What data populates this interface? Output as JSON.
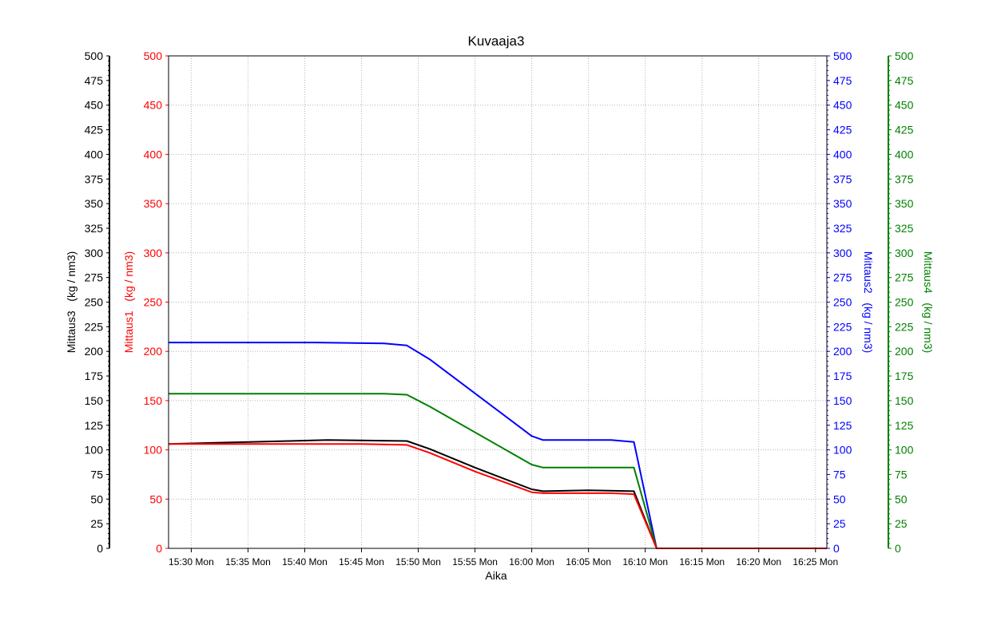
{
  "chart_data": {
    "type": "line",
    "title": "Kuvaaja3",
    "xlabel": "Aika",
    "x_ticks": [
      "15:30 Mon",
      "15:35 Mon",
      "15:40 Mon",
      "15:45 Mon",
      "15:50 Mon",
      "15:55 Mon",
      "16:00 Mon",
      "16:05 Mon",
      "16:10 Mon",
      "16:15 Mon",
      "16:20 Mon",
      "16:25 Mon"
    ],
    "x_range": [
      "15:28 Mon",
      "16:26 Mon"
    ],
    "grid": true,
    "y_axes": [
      {
        "id": "mittaus3",
        "label": "Mittaus3   (kg / nm3)",
        "side": "left-outer",
        "color": "#000000",
        "ylim": [
          0,
          500
        ],
        "ticks": [
          0,
          25,
          50,
          75,
          100,
          125,
          150,
          175,
          200,
          225,
          250,
          275,
          300,
          325,
          350,
          375,
          400,
          425,
          450,
          475,
          500
        ]
      },
      {
        "id": "mittaus1",
        "label": "Mittaus1   (kg / nm3)",
        "side": "left-inner",
        "color": "#ff0000",
        "ylim": [
          0,
          500
        ],
        "ticks": [
          0,
          50,
          100,
          150,
          200,
          250,
          300,
          350,
          400,
          450,
          500
        ]
      },
      {
        "id": "mittaus2",
        "label": "Mittaus2   (kg / nm3)",
        "side": "right-inner",
        "color": "#0000ff",
        "ylim": [
          0,
          500
        ],
        "ticks": [
          0,
          25,
          50,
          75,
          100,
          125,
          150,
          175,
          200,
          225,
          250,
          275,
          300,
          325,
          350,
          375,
          400,
          425,
          450,
          475,
          500
        ]
      },
      {
        "id": "mittaus4",
        "label": "Mittaus4   (kg / nm3)",
        "side": "right-outer",
        "color": "#008000",
        "ylim": [
          0,
          500
        ],
        "ticks": [
          0,
          25,
          50,
          75,
          100,
          125,
          150,
          175,
          200,
          225,
          250,
          275,
          300,
          325,
          350,
          375,
          400,
          425,
          450,
          475,
          500
        ]
      }
    ],
    "series": [
      {
        "axis": "mittaus2",
        "color": "#0000ff",
        "x": [
          "15:28 Mon",
          "15:41 Mon",
          "15:47 Mon",
          "15:49 Mon",
          "15:51 Mon",
          "16:00 Mon",
          "16:01 Mon",
          "16:07 Mon",
          "16:09 Mon",
          "16:11 Mon",
          "16:26 Mon"
        ],
        "values": [
          209,
          209,
          208,
          206,
          192,
          114,
          110,
          110,
          108,
          0,
          0
        ]
      },
      {
        "axis": "mittaus4",
        "color": "#008000",
        "x": [
          "15:28 Mon",
          "15:47 Mon",
          "15:49 Mon",
          "15:51 Mon",
          "16:00 Mon",
          "16:01 Mon",
          "16:09 Mon",
          "16:11 Mon",
          "16:26 Mon"
        ],
        "values": [
          157,
          157,
          156,
          144,
          85,
          82,
          82,
          0,
          0
        ]
      },
      {
        "axis": "mittaus3",
        "color": "#000000",
        "x": [
          "15:28 Mon",
          "15:35 Mon",
          "15:42 Mon",
          "15:49 Mon",
          "15:51 Mon",
          "15:55 Mon",
          "16:00 Mon",
          "16:01 Mon",
          "16:05 Mon",
          "16:09 Mon",
          "16:11 Mon",
          "16:26 Mon"
        ],
        "values": [
          106,
          108,
          110,
          109,
          101,
          82,
          60,
          58,
          59,
          58,
          0,
          0
        ]
      },
      {
        "axis": "mittaus1",
        "color": "#ff0000",
        "x": [
          "15:28 Mon",
          "15:35 Mon",
          "15:45 Mon",
          "15:49 Mon",
          "15:51 Mon",
          "15:55 Mon",
          "16:00 Mon",
          "16:01 Mon",
          "16:07 Mon",
          "16:09 Mon",
          "16:11 Mon",
          "16:26 Mon"
        ],
        "values": [
          106,
          106,
          106,
          105,
          97,
          78,
          57,
          56,
          56,
          55,
          0,
          0
        ]
      }
    ]
  }
}
